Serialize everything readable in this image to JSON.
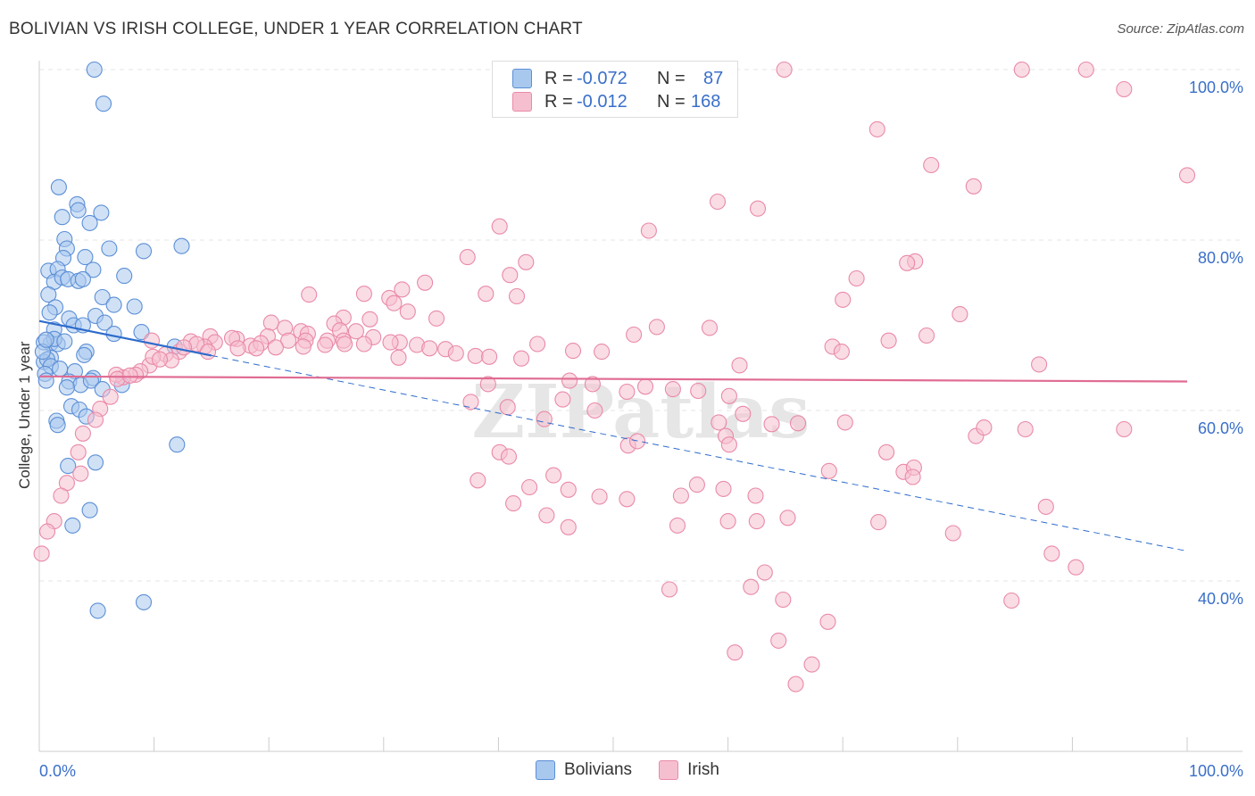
{
  "header": {
    "title": "BOLIVIAN VS IRISH COLLEGE, UNDER 1 YEAR CORRELATION CHART",
    "source": "Source: ZipAtlas.com"
  },
  "watermark": "ZIPatlas",
  "legend": {
    "rows": [
      {
        "r_label": "R =",
        "r_value": "-0.072",
        "n_label": "N =",
        "n_value": "87"
      },
      {
        "r_label": "R =",
        "r_value": "-0.012",
        "n_label": "N =",
        "n_value": "168"
      }
    ],
    "bottom": [
      "Bolivians",
      "Irish"
    ]
  },
  "colors": {
    "bolivians_fill": "#a9c8ee",
    "bolivians_stroke": "#5b8fd6",
    "bolivians_line": "#2e6ccc",
    "irish_fill": "#f6bfd0",
    "irish_stroke": "#e98aa8",
    "irish_line": "#e06c92",
    "axis_text": "#3a6fc9"
  },
  "chart_data": {
    "type": "scatter",
    "title": "BOLIVIAN VS IRISH COLLEGE, UNDER 1 YEAR CORRELATION CHART",
    "xlabel": "",
    "ylabel": "College, Under 1 year",
    "xlim": [
      0,
      100
    ],
    "ylim": [
      20,
      102
    ],
    "x_tick_labels": [
      "0.0%",
      "100.0%"
    ],
    "y_ticks": [
      40,
      60,
      80,
      100
    ],
    "y_tick_labels": [
      "40.0%",
      "60.0%",
      "80.0%",
      "100.0%"
    ],
    "grid": true,
    "series": [
      {
        "name": "Bolivians",
        "R": -0.072,
        "N": 87,
        "trend": {
          "x0": 0,
          "y0": 70.5,
          "x1": 100,
          "y1": 43.5,
          "solid_until": 15
        },
        "points": [
          [
            4.8,
            100
          ],
          [
            5.6,
            96
          ],
          [
            1.7,
            86.2
          ],
          [
            2.0,
            82.7
          ],
          [
            3.3,
            84.2
          ],
          [
            3.4,
            83.5
          ],
          [
            5.4,
            83.2
          ],
          [
            4.4,
            82
          ],
          [
            2.2,
            80.1
          ],
          [
            2.4,
            79
          ],
          [
            6.1,
            79
          ],
          [
            12.4,
            79.3
          ],
          [
            9.1,
            78.7
          ],
          [
            2.1,
            77.9
          ],
          [
            4.0,
            78
          ],
          [
            0.8,
            76.4
          ],
          [
            1.6,
            76.6
          ],
          [
            4.7,
            76.5
          ],
          [
            7.4,
            75.8
          ],
          [
            1.3,
            75.1
          ],
          [
            2.0,
            75.6
          ],
          [
            2.5,
            75.4
          ],
          [
            3.4,
            75.2
          ],
          [
            3.8,
            75.4
          ],
          [
            0.8,
            73.6
          ],
          [
            5.5,
            73.3
          ],
          [
            6.5,
            72.4
          ],
          [
            8.3,
            72.2
          ],
          [
            1.4,
            72.1
          ],
          [
            0.9,
            71.5
          ],
          [
            2.6,
            70.8
          ],
          [
            4.9,
            71.1
          ],
          [
            3.0,
            70
          ],
          [
            3.8,
            70
          ],
          [
            5.7,
            70.3
          ],
          [
            1.3,
            69.5
          ],
          [
            6.5,
            69
          ],
          [
            8.9,
            69.2
          ],
          [
            1.0,
            67.9
          ],
          [
            1.6,
            67.8
          ],
          [
            1.3,
            68.4
          ],
          [
            0.4,
            68
          ],
          [
            4.1,
            66.9
          ],
          [
            3.9,
            66.5
          ],
          [
            1.0,
            66.2
          ],
          [
            0.4,
            65.7
          ],
          [
            0.7,
            66
          ],
          [
            1.0,
            65.2
          ],
          [
            0.5,
            64.3
          ],
          [
            1.8,
            64.9
          ],
          [
            3.1,
            64.6
          ],
          [
            4.7,
            63.8
          ],
          [
            0.6,
            63.5
          ],
          [
            2.6,
            63.4
          ],
          [
            3.6,
            63
          ],
          [
            4.5,
            63.5
          ],
          [
            7.2,
            63
          ],
          [
            2.4,
            62.7
          ],
          [
            5.5,
            62.5
          ],
          [
            2.8,
            60.5
          ],
          [
            3.5,
            60.1
          ],
          [
            4.1,
            59.3
          ],
          [
            1.5,
            58.8
          ],
          [
            1.6,
            58.3
          ],
          [
            12.0,
            56
          ],
          [
            4.9,
            53.9
          ],
          [
            2.5,
            53.5
          ],
          [
            4.4,
            48.3
          ],
          [
            2.9,
            46.5
          ],
          [
            5.1,
            36.5
          ],
          [
            9.1,
            37.5
          ],
          [
            11.8,
            67.5
          ],
          [
            0.3,
            66.9
          ],
          [
            0.6,
            68.3
          ],
          [
            2.2,
            68.1
          ]
        ]
      },
      {
        "name": "Irish",
        "R": -0.012,
        "N": 168,
        "trend": {
          "x0": 0,
          "y0": 64,
          "x1": 100,
          "y1": 63.4
        },
        "points": [
          [
            64.9,
            100
          ],
          [
            85.6,
            100
          ],
          [
            91.2,
            100
          ],
          [
            94.5,
            97.7
          ],
          [
            73.0,
            93
          ],
          [
            77.7,
            88.8
          ],
          [
            81.4,
            86.3
          ],
          [
            100,
            87.6
          ],
          [
            59.1,
            84.5
          ],
          [
            62.6,
            83.7
          ],
          [
            40.1,
            81.6
          ],
          [
            53.1,
            81.1
          ],
          [
            37.3,
            78
          ],
          [
            42.4,
            77.4
          ],
          [
            76.3,
            77.5
          ],
          [
            75.6,
            77.3
          ],
          [
            41.0,
            75.9
          ],
          [
            71.2,
            75.5
          ],
          [
            33.6,
            75
          ],
          [
            31.6,
            74.2
          ],
          [
            28.3,
            73.7
          ],
          [
            23.5,
            73.6
          ],
          [
            30.5,
            73.2
          ],
          [
            38.9,
            73.7
          ],
          [
            41.6,
            73.4
          ],
          [
            30.9,
            72.6
          ],
          [
            70.0,
            73
          ],
          [
            32.1,
            71.6
          ],
          [
            80.2,
            71.3
          ],
          [
            26.5,
            70.9
          ],
          [
            28.8,
            70.7
          ],
          [
            34.6,
            70.8
          ],
          [
            20.2,
            70.3
          ],
          [
            21.4,
            69.7
          ],
          [
            25.7,
            70.2
          ],
          [
            26.2,
            69.4
          ],
          [
            27.6,
            69.3
          ],
          [
            22.8,
            69.3
          ],
          [
            23.4,
            69
          ],
          [
            19.9,
            68.7
          ],
          [
            23.2,
            68.2
          ],
          [
            25.1,
            68.2
          ],
          [
            23.0,
            67.5
          ],
          [
            29.1,
            68.6
          ],
          [
            26.5,
            68.2
          ],
          [
            31.4,
            68
          ],
          [
            21.7,
            68.2
          ],
          [
            18.4,
            67.6
          ],
          [
            19.3,
            67.9
          ],
          [
            17.2,
            68.4
          ],
          [
            16.8,
            68.5
          ],
          [
            14.9,
            68.7
          ],
          [
            15.3,
            68
          ],
          [
            13.2,
            68.1
          ],
          [
            14.4,
            67.5
          ],
          [
            13.7,
            67.8
          ],
          [
            12.2,
            66.9
          ],
          [
            12.6,
            67.4
          ],
          [
            14.7,
            66.9
          ],
          [
            17.3,
            67.3
          ],
          [
            18.9,
            67.3
          ],
          [
            20.6,
            67.4
          ],
          [
            24.9,
            67.7
          ],
          [
            26.6,
            67.8
          ],
          [
            28.3,
            67.8
          ],
          [
            30.6,
            68
          ],
          [
            32.9,
            67.7
          ],
          [
            34.0,
            67.3
          ],
          [
            35.4,
            67.2
          ],
          [
            36.3,
            66.7
          ],
          [
            38.0,
            66.4
          ],
          [
            39.2,
            66.3
          ],
          [
            31.3,
            66.2
          ],
          [
            42.0,
            66.1
          ],
          [
            43.4,
            67.8
          ],
          [
            46.5,
            67
          ],
          [
            49.0,
            66.9
          ],
          [
            53.8,
            69.8
          ],
          [
            58.4,
            69.7
          ],
          [
            51.8,
            68.9
          ],
          [
            69.1,
            67.5
          ],
          [
            69.9,
            66.9
          ],
          [
            74.0,
            68.2
          ],
          [
            77.3,
            68.8
          ],
          [
            61.0,
            65.3
          ],
          [
            87.1,
            65.4
          ],
          [
            9.8,
            68.2
          ],
          [
            11.0,
            66.6
          ],
          [
            11.5,
            65.9
          ],
          [
            9.6,
            65.3
          ],
          [
            9.9,
            66.3
          ],
          [
            10.5,
            66
          ],
          [
            8.8,
            64.6
          ],
          [
            8.4,
            64.2
          ],
          [
            7.3,
            63.9
          ],
          [
            6.7,
            64.2
          ],
          [
            6.8,
            63.7
          ],
          [
            7.9,
            64.1
          ],
          [
            6.2,
            61.6
          ],
          [
            5.3,
            60.2
          ],
          [
            4.9,
            58.9
          ],
          [
            3.8,
            57.3
          ],
          [
            3.4,
            55.1
          ],
          [
            3.6,
            52.6
          ],
          [
            2.4,
            51.5
          ],
          [
            1.9,
            50
          ],
          [
            1.3,
            47
          ],
          [
            0.7,
            45.8
          ],
          [
            0.2,
            43.2
          ],
          [
            39.1,
            63.1
          ],
          [
            46.2,
            63.5
          ],
          [
            48.2,
            63.1
          ],
          [
            51.2,
            62.2
          ],
          [
            52.8,
            62.8
          ],
          [
            55.2,
            62.5
          ],
          [
            57.4,
            62.3
          ],
          [
            60.1,
            61.7
          ],
          [
            45.6,
            61.3
          ],
          [
            37.6,
            61
          ],
          [
            40.8,
            60.4
          ],
          [
            44.0,
            59
          ],
          [
            48.4,
            60
          ],
          [
            61.3,
            59.6
          ],
          [
            63.8,
            58.4
          ],
          [
            66.1,
            58.5
          ],
          [
            70.2,
            58.6
          ],
          [
            73.8,
            55.1
          ],
          [
            75.3,
            52.8
          ],
          [
            76.2,
            53.3
          ],
          [
            81.6,
            57
          ],
          [
            85.9,
            57.8
          ],
          [
            94.5,
            57.8
          ],
          [
            59.8,
            57
          ],
          [
            60.1,
            56
          ],
          [
            51.3,
            55.9
          ],
          [
            38.2,
            51.8
          ],
          [
            40.1,
            55.1
          ],
          [
            42.7,
            51
          ],
          [
            46.1,
            50.7
          ],
          [
            48.8,
            49.9
          ],
          [
            51.2,
            49.6
          ],
          [
            55.9,
            50
          ],
          [
            57.3,
            51.3
          ],
          [
            59.6,
            50.8
          ],
          [
            62.4,
            50
          ],
          [
            68.8,
            52.9
          ],
          [
            76.1,
            52.2
          ],
          [
            87.7,
            48.7
          ],
          [
            44.2,
            47.7
          ],
          [
            46.1,
            46.3
          ],
          [
            55.6,
            46.5
          ],
          [
            60.0,
            47
          ],
          [
            62.5,
            47
          ],
          [
            65.2,
            47.4
          ],
          [
            73.1,
            46.9
          ],
          [
            79.6,
            45.6
          ],
          [
            88.2,
            43.2
          ],
          [
            90.3,
            41.6
          ],
          [
            63.2,
            41
          ],
          [
            54.9,
            39
          ],
          [
            62.0,
            39.3
          ],
          [
            64.8,
            37.8
          ],
          [
            84.7,
            37.7
          ],
          [
            68.7,
            35.2
          ],
          [
            67.3,
            30.2
          ],
          [
            64.4,
            33
          ],
          [
            60.6,
            31.6
          ],
          [
            65.9,
            27.9
          ],
          [
            41.3,
            49.1
          ],
          [
            44.8,
            52.4
          ],
          [
            82.3,
            58
          ],
          [
            59.2,
            58.6
          ],
          [
            52.1,
            56.4
          ],
          [
            40.9,
            54.6
          ]
        ]
      }
    ]
  }
}
